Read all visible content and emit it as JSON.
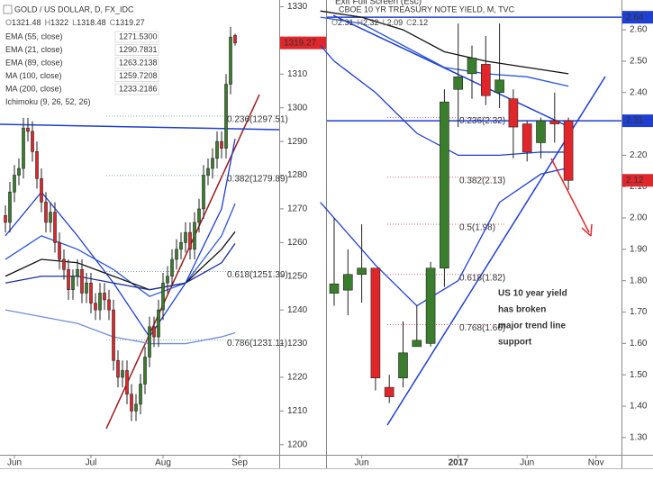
{
  "chart_data": [
    {
      "type": "candlestick",
      "title": "GOLD / US DOLLAR, D, FX_IDC",
      "ohlc_letters": [
        "O",
        "H",
        "L",
        "C"
      ],
      "up_color": "#3a7d2c",
      "down_color": "#e0262b",
      "open": [
        1268,
        1266,
        1275,
        1280,
        1282,
        1294,
        1293,
        1287,
        1279,
        1272,
        1266,
        1269,
        1260,
        1255,
        1252,
        1246,
        1250,
        1252,
        1245,
        1248,
        1242,
        1240,
        1245,
        1243,
        1240,
        1225,
        1220,
        1222,
        1215,
        1210,
        1212,
        1218,
        1226,
        1235,
        1232,
        1240,
        1248,
        1250,
        1255,
        1258,
        1260,
        1263,
        1258,
        1266,
        1270,
        1280,
        1282,
        1285,
        1290,
        1288,
        1307,
        1321.48
      ],
      "high": [
        1271,
        1278,
        1283,
        1285,
        1297,
        1297,
        1296,
        1290,
        1282,
        1275,
        1272,
        1272,
        1263,
        1258,
        1255,
        1252,
        1255,
        1255,
        1251,
        1251,
        1245,
        1248,
        1248,
        1246,
        1243,
        1228,
        1225,
        1225,
        1218,
        1215,
        1221,
        1229,
        1238,
        1238,
        1243,
        1251,
        1253,
        1258,
        1261,
        1263,
        1266,
        1266,
        1269,
        1273,
        1283,
        1285,
        1288,
        1293,
        1293,
        1310,
        1324,
        1322.0
      ],
      "low": [
        1263,
        1263,
        1272,
        1277,
        1279,
        1290,
        1284,
        1276,
        1269,
        1263,
        1263,
        1257,
        1252,
        1249,
        1243,
        1243,
        1247,
        1242,
        1242,
        1239,
        1237,
        1237,
        1240,
        1237,
        1222,
        1217,
        1217,
        1212,
        1207,
        1207,
        1209,
        1215,
        1223,
        1229,
        1229,
        1237,
        1245,
        1247,
        1252,
        1255,
        1257,
        1255,
        1255,
        1263,
        1267,
        1277,
        1279,
        1282,
        1285,
        1285,
        1304,
        1318.48
      ],
      "close": [
        1266,
        1275,
        1280,
        1282,
        1294,
        1293,
        1287,
        1279,
        1272,
        1266,
        1269,
        1260,
        1255,
        1252,
        1246,
        1250,
        1252,
        1245,
        1248,
        1242,
        1240,
        1245,
        1243,
        1240,
        1225,
        1220,
        1222,
        1215,
        1210,
        1212,
        1218,
        1226,
        1235,
        1232,
        1240,
        1248,
        1250,
        1255,
        1258,
        1260,
        1263,
        1258,
        1266,
        1270,
        1280,
        1282,
        1285,
        1290,
        1288,
        1307,
        1321,
        1319.27
      ],
      "xticks": [
        {
          "value": 2,
          "label": "Jun"
        },
        {
          "value": 19,
          "label": "Jul"
        },
        {
          "value": 35,
          "label": "Aug"
        },
        {
          "value": 52,
          "label": "Sep"
        }
      ],
      "ylim": [
        1197,
        1332
      ],
      "yticks": [
        1200,
        1210,
        1220,
        1230,
        1240,
        1250,
        1260,
        1270,
        1280,
        1290,
        1300,
        1310,
        1320,
        1330
      ],
      "indicators": [
        {
          "name": "EMA (55, close)",
          "value_label": "1271.5300",
          "color": "#2a55d6",
          "x": [
            0,
            8,
            16,
            24,
            32,
            40,
            48,
            51
          ],
          "values": [
            1255,
            1262,
            1258,
            1252,
            1244,
            1248,
            1262,
            1271.53
          ]
        },
        {
          "name": "EMA (21, close)",
          "value_label": "1290.7831",
          "color": "#1f3fd0",
          "x": [
            0,
            8,
            16,
            24,
            32,
            40,
            48,
            51
          ],
          "values": [
            1262,
            1275,
            1262,
            1248,
            1232,
            1248,
            1270,
            1290.7831
          ]
        },
        {
          "name": "EMA (89, close)",
          "value_label": "1263.2138",
          "color": "#111111",
          "x": [
            0,
            8,
            16,
            24,
            32,
            40,
            48,
            51
          ],
          "values": [
            1250,
            1255,
            1254,
            1250,
            1246,
            1248,
            1258,
            1263.2138
          ]
        },
        {
          "name": "MA (100, close)",
          "value_label": "1259.7208",
          "color": "#1c2f9c",
          "x": [
            0,
            8,
            16,
            24,
            32,
            40,
            48,
            51
          ],
          "values": [
            1248,
            1250,
            1250,
            1248,
            1246,
            1248,
            1254,
            1259.7208
          ]
        },
        {
          "name": "MA (200, close)",
          "value_label": "1233.2186",
          "color": "#6f8fd8",
          "x": [
            0,
            8,
            16,
            24,
            32,
            40,
            48,
            51
          ],
          "values": [
            1240,
            1238,
            1236,
            1232,
            1230,
            1230,
            1232,
            1233.2186
          ]
        }
      ],
      "extra_legend": "Ichimoku (9, 26, 52, 26)",
      "fib_levels": [
        {
          "label": "0.236(1297.51)",
          "value": 1297.51
        },
        {
          "label": "0.382(1279.89)",
          "value": 1279.89
        },
        {
          "label": "0.618(1251.39)",
          "value": 1251.39
        },
        {
          "label": "0.786(1231.11)",
          "value": 1231.11
        }
      ],
      "hlines": []
    },
    {
      "type": "candlestick",
      "title": "CBOE 10 YR TREASURY NOTE YIELD, M, TVC",
      "ohlc_letters": [
        "O",
        "H",
        "L",
        "C"
      ],
      "up_color": "#3a7d2c",
      "down_color": "#e0262b",
      "open": [
        1.76,
        1.77,
        1.82,
        1.84,
        1.46,
        1.49,
        1.59,
        1.6,
        1.84,
        2.41,
        2.46,
        2.49,
        2.4,
        2.38,
        2.3,
        2.24,
        2.31,
        2.31
      ],
      "high": [
        2.0,
        1.9,
        1.98,
        1.84,
        1.5,
        1.67,
        1.72,
        1.86,
        2.41,
        2.62,
        2.55,
        2.58,
        2.62,
        2.41,
        2.31,
        2.32,
        2.4,
        2.32
      ],
      "low": [
        1.72,
        1.69,
        1.73,
        1.45,
        1.41,
        1.46,
        1.59,
        1.59,
        1.78,
        2.29,
        2.38,
        2.36,
        2.35,
        2.19,
        2.18,
        2.19,
        2.24,
        2.09
      ],
      "close": [
        1.79,
        1.82,
        1.84,
        1.49,
        1.43,
        1.57,
        1.61,
        1.84,
        2.37,
        2.45,
        2.51,
        2.39,
        2.44,
        2.29,
        2.21,
        2.31,
        2.3,
        2.12
      ],
      "xticks": [
        {
          "value": 2,
          "label": "Jun"
        },
        {
          "value": 9,
          "label": "2017"
        },
        {
          "value": 14,
          "label": "Jun"
        },
        {
          "value": 19,
          "label": "Nov"
        }
      ],
      "ylim": [
        1.245,
        2.695
      ],
      "yticks": [
        {
          "value": 1.3,
          "label": "1.30"
        },
        {
          "value": 1.4,
          "label": "1.40"
        },
        {
          "value": 1.5,
          "label": "1.50"
        },
        {
          "value": 1.6,
          "label": "1.60"
        },
        {
          "value": 1.7,
          "label": "1.70"
        },
        {
          "value": 1.8,
          "label": "1.80"
        },
        {
          "value": 1.9,
          "label": "1.90"
        },
        {
          "value": 2.0,
          "label": "2.00"
        },
        {
          "value": 2.1,
          "label": "2.10"
        },
        {
          "value": 2.2,
          "label": "2.20"
        },
        {
          "value": 2.3,
          "label": "2.30"
        },
        {
          "value": 2.4,
          "label": "2.40"
        },
        {
          "value": 2.5,
          "label": "2.50"
        },
        {
          "value": 2.6,
          "label": "2.60"
        }
      ],
      "indicators": [
        {
          "color": "#111111",
          "x": [
            -1,
            2,
            5,
            8,
            11,
            14,
            17
          ],
          "values": [
            2.66,
            2.64,
            2.6,
            2.53,
            2.5,
            2.48,
            2.46
          ]
        },
        {
          "color": "#2a55d6",
          "x": [
            -1,
            2,
            5,
            8,
            11,
            14,
            17
          ],
          "values": [
            2.64,
            2.62,
            2.55,
            2.48,
            2.46,
            2.45,
            2.42
          ]
        },
        {
          "color": "#1f3fd0",
          "x": [
            -1,
            0,
            3,
            6,
            9,
            12,
            15,
            17
          ],
          "values": [
            2.55,
            2.5,
            2.4,
            2.27,
            2.2,
            2.2,
            2.21,
            2.21
          ]
        },
        {
          "color": "#1f3fd0",
          "x": [
            -1,
            0,
            3,
            6,
            9,
            12,
            15,
            17
          ],
          "values": [
            2.05,
            2.0,
            1.85,
            1.72,
            1.8,
            2.05,
            2.14,
            2.16
          ]
        }
      ],
      "fib_levels": [
        {
          "label": "0.236(2.32)",
          "value": 2.32
        },
        {
          "label": "0.382(2.13)",
          "value": 2.13
        },
        {
          "label": "0.5(1.98)",
          "value": 1.98
        },
        {
          "label": "0.618(1.82)",
          "value": 1.82
        },
        {
          "label": "0.768(1.66)",
          "value": 1.66
        }
      ],
      "hlines": [
        {
          "value": 2.64,
          "color": "#1f3fd0"
        },
        {
          "value": 2.31,
          "color": "#1f3fd0"
        }
      ],
      "annotation": [
        "US 10 year yield",
        "has broken",
        "major trend line",
        "support"
      ],
      "screen_hint": "Exit Full Screen (Esc)"
    }
  ]
}
